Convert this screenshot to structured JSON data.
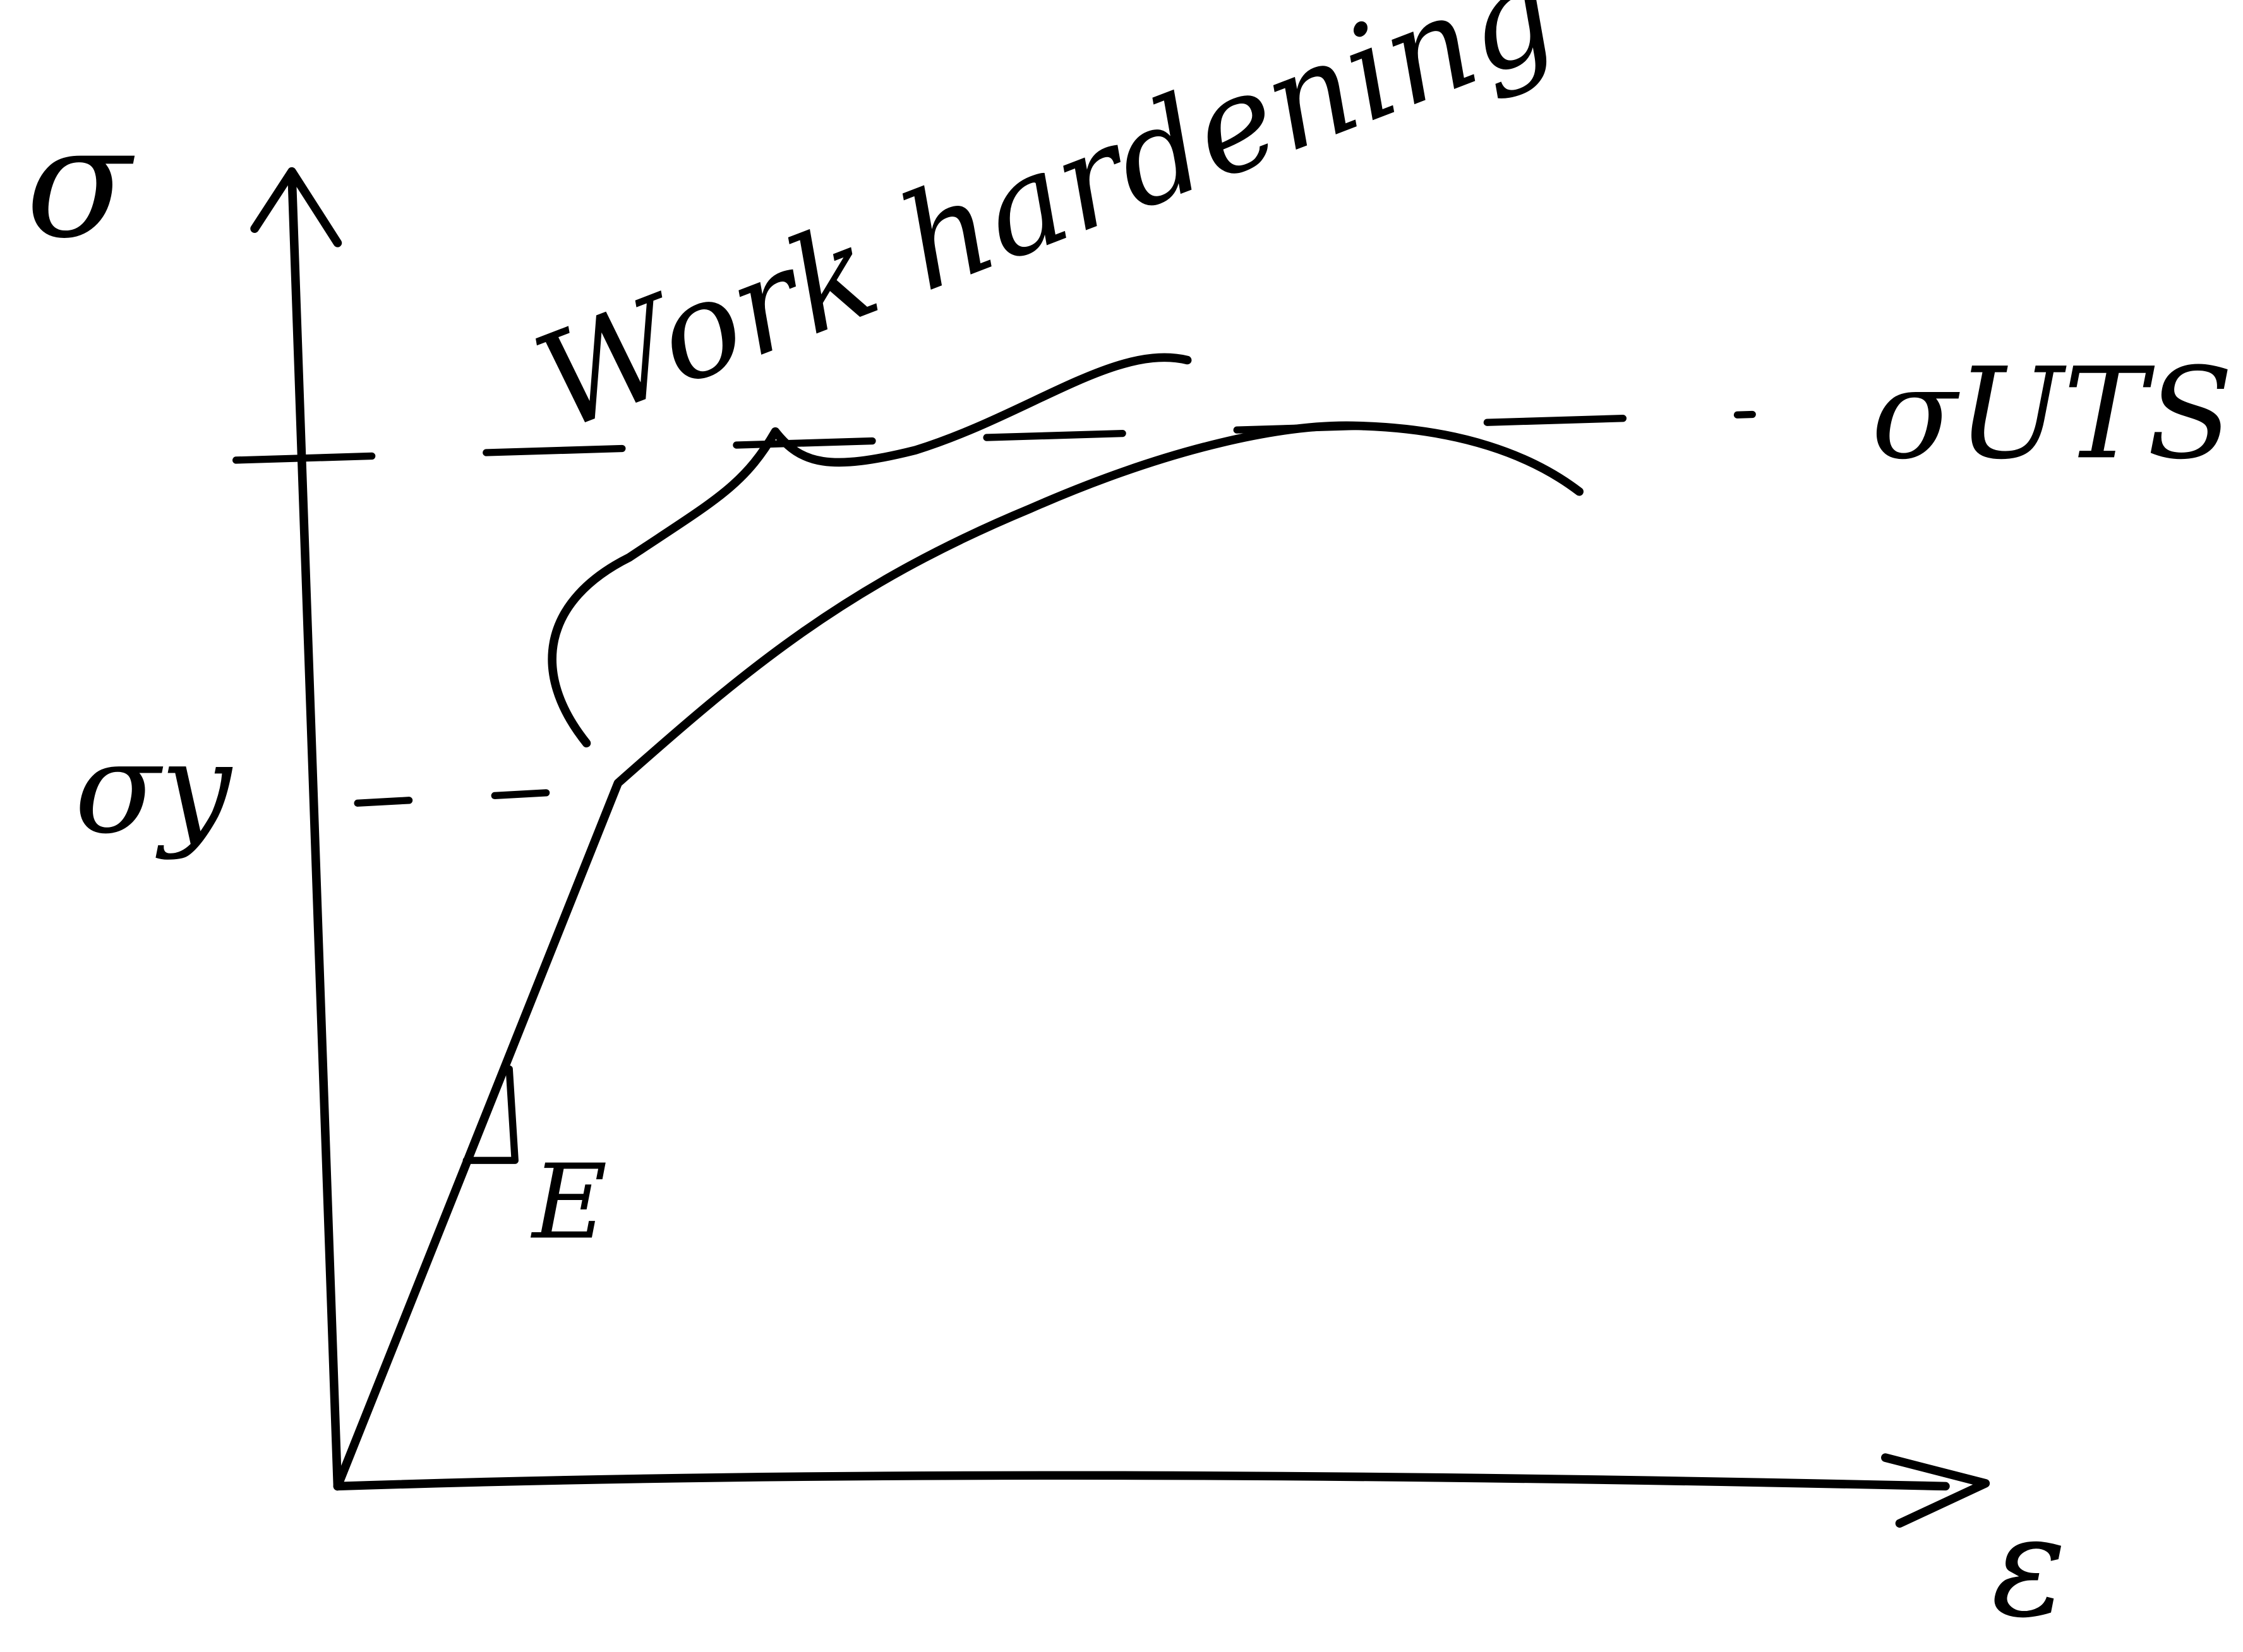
{
  "diagram": {
    "type": "hand-drawn stress-strain curve",
    "ink_color": "#000000",
    "background_color": "#ffffff",
    "labels": {
      "y_axis": "σ",
      "x_axis": "ε",
      "yield_stress": "σy",
      "ultimate_stress": "σUTS",
      "modulus": "E",
      "region": "Work hardening"
    }
  }
}
